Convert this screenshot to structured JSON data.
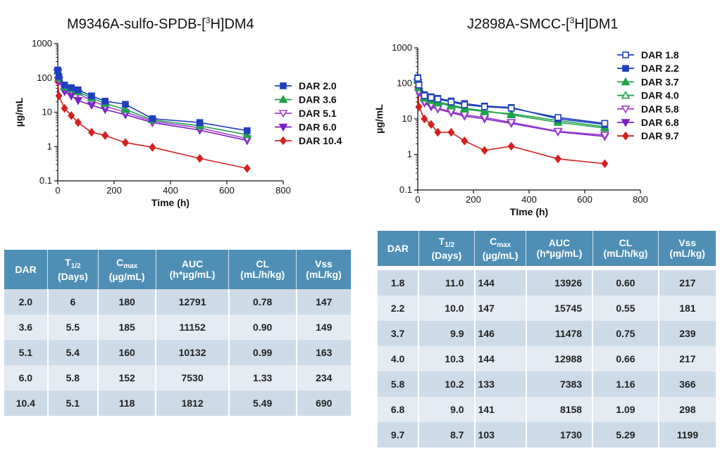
{
  "chart_data": [
    {
      "type": "line",
      "title_main": "M9346A-sulfo-SPDB-[",
      "title_sup": "3",
      "title_rest": "H]DM4",
      "xlabel": "Time (h)",
      "ylabel": "µg/mL",
      "yscale": "log",
      "xlim": [
        0,
        800
      ],
      "ylim": [
        0.1,
        1000
      ],
      "xticks": [
        0,
        200,
        400,
        600,
        800
      ],
      "yticks": [
        0.1,
        1,
        10,
        100,
        1000
      ],
      "ytick_labels": [
        "0.1",
        "1",
        "10",
        "100",
        "1000"
      ],
      "legend_position": "right",
      "series": [
        {
          "name": "DAR 2.0",
          "color": "#1f3fbf",
          "marker": "square-filled",
          "x": [
            0.083,
            4,
            24,
            48,
            72,
            120,
            168,
            240,
            336,
            504,
            672
          ],
          "y": [
            170,
            110,
            62,
            52,
            45,
            30,
            21,
            17,
            6.5,
            5.0,
            2.9
          ]
        },
        {
          "name": "DAR 3.6",
          "color": "#1fa34a",
          "marker": "triangle-filled",
          "x": [
            0.083,
            4,
            24,
            48,
            72,
            120,
            168,
            240,
            336,
            504,
            672
          ],
          "y": [
            160,
            100,
            55,
            48,
            40,
            26,
            18,
            12,
            6.0,
            4.0,
            2.2
          ]
        },
        {
          "name": "DAR 5.1",
          "color": "#a040d0",
          "marker": "triangle-down-open",
          "x": [
            0.083,
            4,
            24,
            48,
            72,
            120,
            168,
            240,
            336,
            504,
            672
          ],
          "y": [
            150,
            90,
            50,
            42,
            35,
            22,
            15,
            10,
            5.5,
            3.5,
            1.7
          ]
        },
        {
          "name": "DAR 6.0",
          "color": "#7a20c8",
          "marker": "triangle-down-filled",
          "x": [
            0.083,
            4,
            24,
            48,
            72,
            120,
            168,
            240,
            336,
            504,
            672
          ],
          "y": [
            140,
            80,
            40,
            30,
            22,
            16,
            12,
            8.5,
            5.0,
            3.0,
            1.5
          ]
        },
        {
          "name": "DAR 10.4",
          "color": "#d42020",
          "marker": "diamond-filled",
          "x": [
            0.083,
            4,
            24,
            48,
            72,
            120,
            168,
            240,
            336,
            504,
            672
          ],
          "y": [
            80,
            30,
            13,
            8.0,
            5.0,
            2.6,
            2.1,
            1.3,
            0.95,
            0.45,
            0.23
          ]
        }
      ]
    },
    {
      "type": "line",
      "title_main": "J2898A-SMCC-[",
      "title_sup": "3",
      "title_rest": "H]DM1",
      "xlabel": "TIme (h)",
      "ylabel": "µg/mL",
      "yscale": "log",
      "xlim": [
        0,
        800
      ],
      "ylim": [
        0.1,
        1000
      ],
      "xticks": [
        0,
        200,
        400,
        600,
        800
      ],
      "yticks": [
        0.1,
        1,
        10,
        100,
        1000
      ],
      "ytick_labels": [
        "0.1",
        "1",
        "10",
        "100",
        "1000"
      ],
      "legend_position": "right",
      "series": [
        {
          "name": "DAR 1.8",
          "color": "#1f3fbf",
          "marker": "square-open",
          "x": [
            0.083,
            4,
            24,
            48,
            72,
            120,
            168,
            240,
            336,
            504,
            672
          ],
          "y": [
            140,
            90,
            45,
            40,
            36,
            30,
            25,
            22,
            20,
            11,
            7.5
          ]
        },
        {
          "name": "DAR 2.2",
          "color": "#1f3fbf",
          "marker": "square-filled",
          "x": [
            0.083,
            4,
            24,
            48,
            72,
            120,
            168,
            240,
            336,
            504,
            672
          ],
          "y": [
            145,
            95,
            48,
            42,
            38,
            32,
            27,
            23,
            21,
            10,
            7.0
          ]
        },
        {
          "name": "DAR 3.7",
          "color": "#1fa34a",
          "marker": "triangle-filled",
          "x": [
            0.083,
            4,
            24,
            48,
            72,
            120,
            168,
            240,
            336,
            504,
            672
          ],
          "y": [
            130,
            80,
            40,
            35,
            30,
            25,
            20,
            17,
            13,
            8.0,
            5.5
          ]
        },
        {
          "name": "DAR 4.0",
          "color": "#1fa34a",
          "marker": "triangle-open",
          "x": [
            0.083,
            4,
            24,
            48,
            72,
            120,
            168,
            240,
            336,
            504,
            672
          ],
          "y": [
            125,
            75,
            38,
            33,
            28,
            23,
            19,
            16,
            14,
            9.0,
            6.0
          ]
        },
        {
          "name": "DAR 5.8",
          "color": "#a040d0",
          "marker": "triangle-down-open",
          "x": [
            0.083,
            4,
            24,
            48,
            72,
            120,
            168,
            240,
            336,
            504,
            672
          ],
          "y": [
            110,
            60,
            30,
            25,
            20,
            16,
            13,
            11,
            8.0,
            4.5,
            3.5
          ]
        },
        {
          "name": "DAR 6.8",
          "color": "#7a20c8",
          "marker": "triangle-down-filled",
          "x": [
            0.083,
            4,
            24,
            48,
            72,
            120,
            168,
            240,
            336,
            504,
            672
          ],
          "y": [
            105,
            55,
            28,
            22,
            19,
            15,
            12,
            10,
            7.5,
            4.3,
            3.2
          ]
        },
        {
          "name": "DAR 9.7",
          "color": "#d42020",
          "marker": "diamond-filled",
          "x": [
            0.083,
            4,
            24,
            48,
            72,
            120,
            168,
            240,
            336,
            504,
            672
          ],
          "y": [
            80,
            22,
            10,
            7.0,
            4.2,
            4.2,
            2.4,
            1.3,
            1.7,
            0.75,
            0.55
          ]
        }
      ]
    },
    {
      "type": "table",
      "columns": [
        {
          "main": "DAR",
          "sub": "",
          "line2": ""
        },
        {
          "main": "T",
          "sub": "1/2",
          "line2": "(Days)"
        },
        {
          "main": "C",
          "sub": "max",
          "line2": "(µg/mL)"
        },
        {
          "main": "AUC",
          "sub": "",
          "line2": "(h*µg/mL)"
        },
        {
          "main": "CL",
          "sub": "",
          "line2": "(mL/h/kg)"
        },
        {
          "main": "Vss",
          "sub": "",
          "line2": "(mL/kg)"
        }
      ],
      "rows": [
        [
          "2.0",
          "6",
          "180",
          "12791",
          "0.78",
          "147"
        ],
        [
          "3.6",
          "5.5",
          "185",
          "11152",
          "0.90",
          "149"
        ],
        [
          "5.1",
          "5.4",
          "160",
          "10132",
          "0.99",
          "163"
        ],
        [
          "6.0",
          "5.8",
          "152",
          "7530",
          "1.33",
          "234"
        ],
        [
          "10.4",
          "5.1",
          "118",
          "1812",
          "5.49",
          "690"
        ]
      ]
    },
    {
      "type": "table",
      "columns": [
        {
          "main": "DAR",
          "sub": "",
          "line2": ""
        },
        {
          "main": "T",
          "sub": "1/2",
          "line2": "(Days)"
        },
        {
          "main": "C",
          "sub": "max",
          "line2": "(µg/mL)"
        },
        {
          "main": "AUC",
          "sub": "",
          "line2": "(h*µg/mL)"
        },
        {
          "main": "CL",
          "sub": "",
          "line2": "(mL/h/kg)"
        },
        {
          "main": "Vss",
          "sub": "",
          "line2": "(mL/kg)"
        }
      ],
      "rows": [
        [
          "1.8",
          "11.0",
          "144",
          "13926",
          "0.60",
          "217"
        ],
        [
          "2.2",
          "10.0",
          "147",
          "15745",
          "0.55",
          "181"
        ],
        [
          "3.7",
          "9.9",
          "146",
          "11478",
          "0.75",
          "239"
        ],
        [
          "4.0",
          "10.3",
          "144",
          "12988",
          "0.66",
          "217"
        ],
        [
          "5.8",
          "10.2",
          "133",
          "7383",
          "1.16",
          "366"
        ],
        [
          "6.8",
          "9.0",
          "141",
          "8158",
          "1.09",
          "298"
        ],
        [
          "9.7",
          "8.7",
          "103",
          "1730",
          "5.29",
          "1199"
        ]
      ]
    }
  ]
}
